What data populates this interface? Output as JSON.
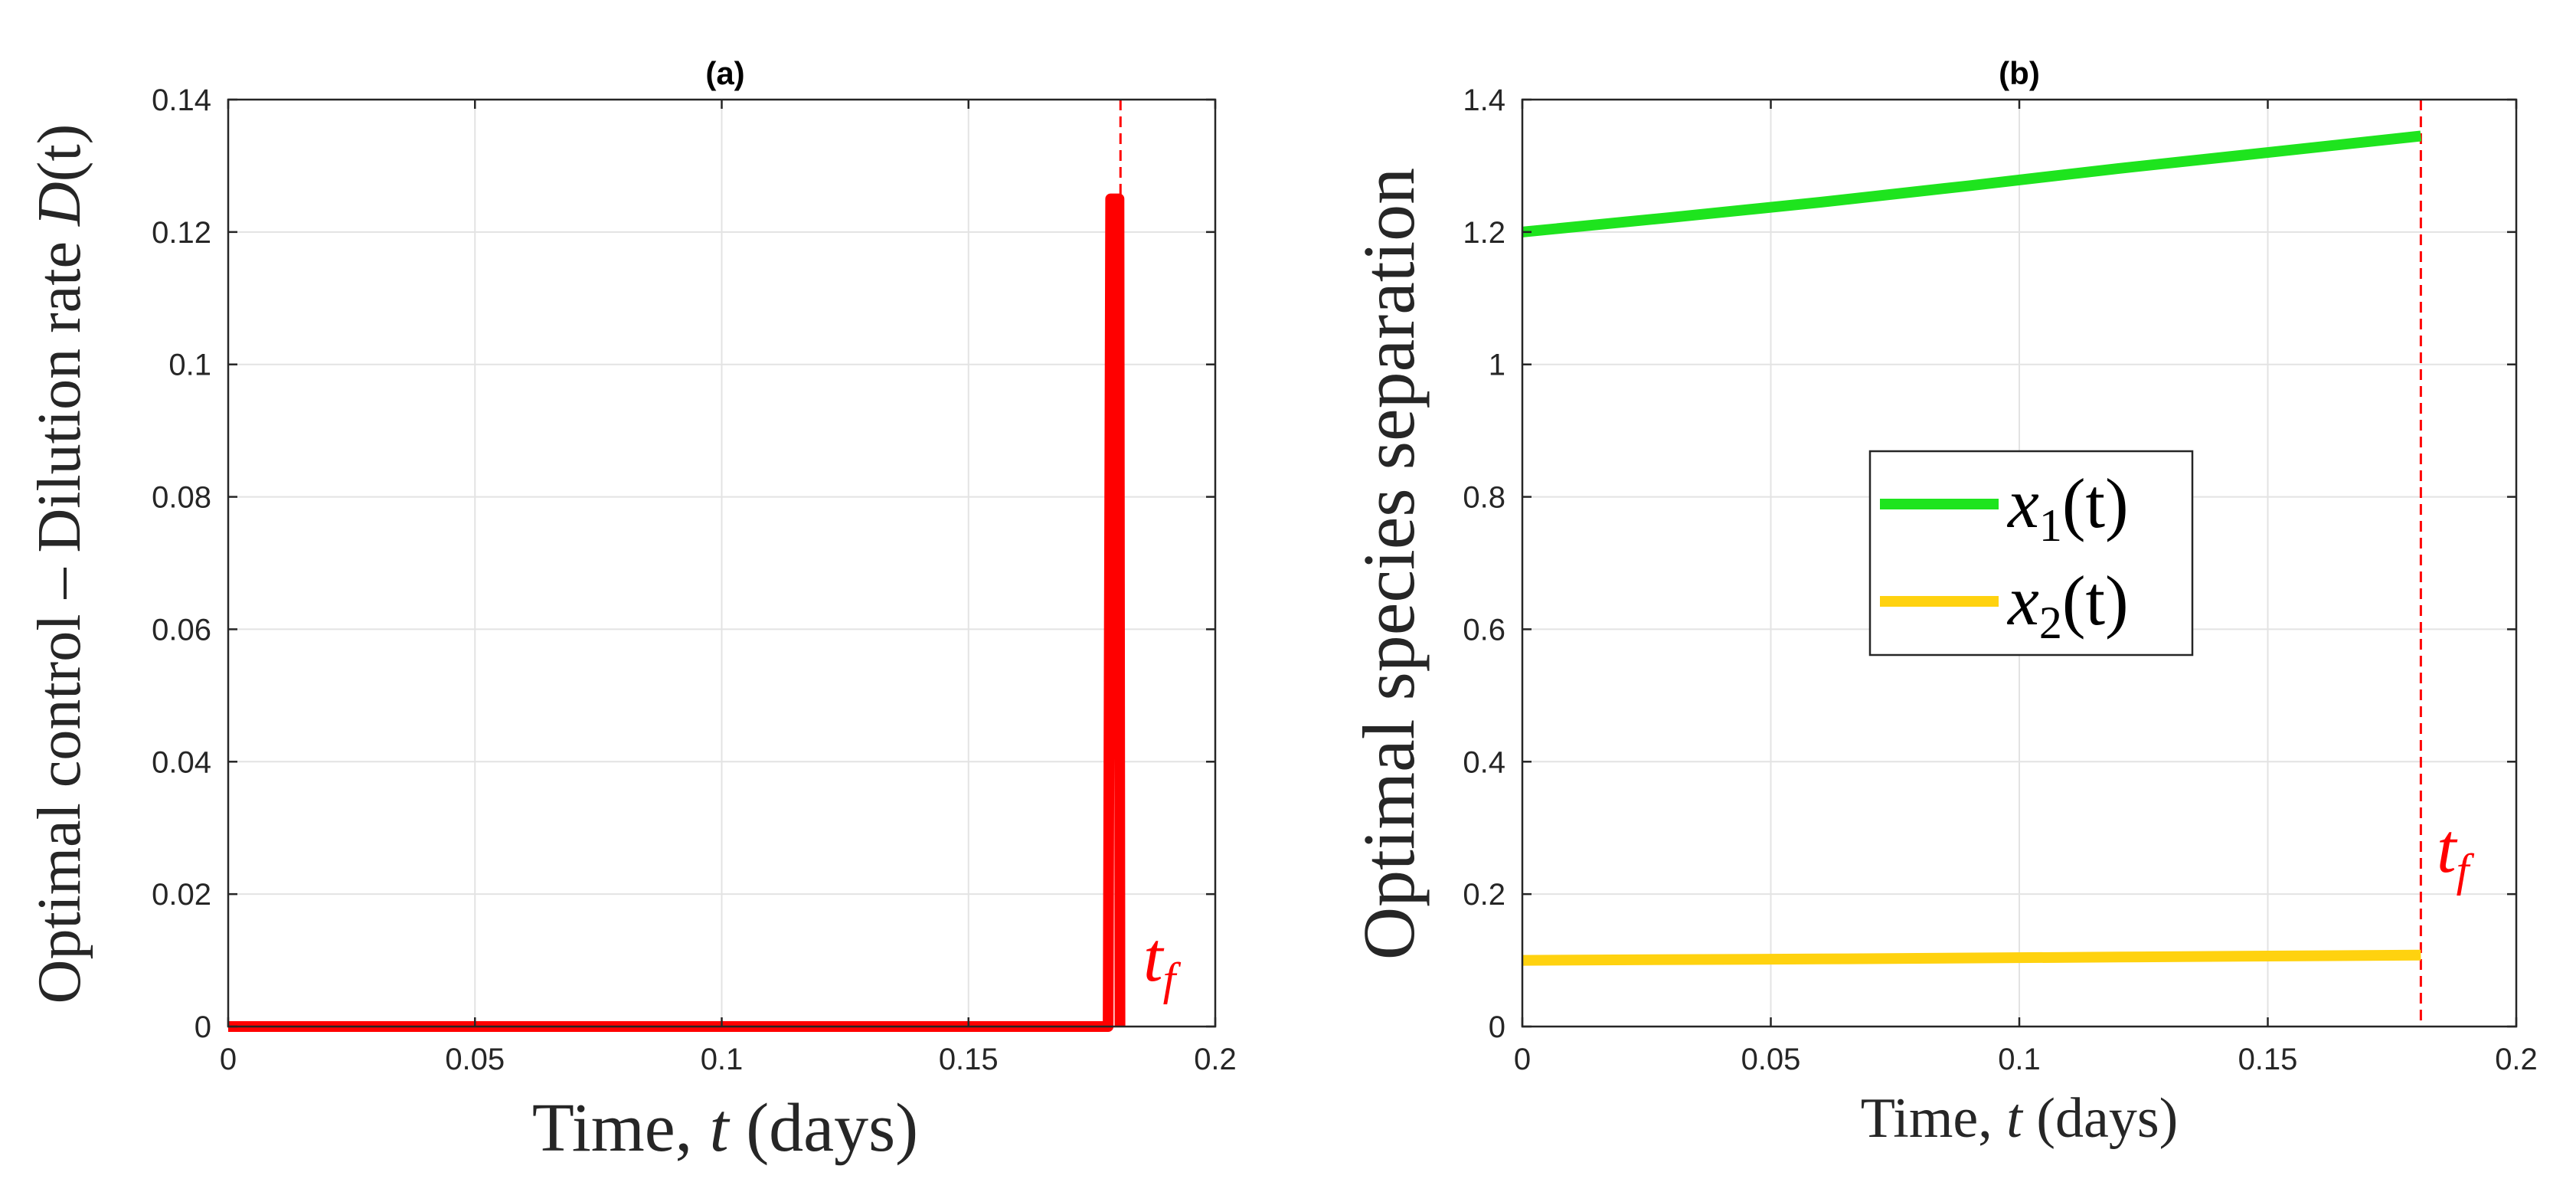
{
  "chart_data": [
    {
      "type": "line",
      "panel_title": "(a)",
      "xlabel_prefix": "Time, ",
      "xlabel_var": "t",
      "xlabel_suffix": " (days)",
      "ylabel_prefix": "Optimal control – Dilution rate ",
      "ylabel_var": "D",
      "ylabel_suffix": "(t)",
      "xlim": [
        0,
        0.2
      ],
      "ylim": [
        0,
        0.14
      ],
      "x_ticks": [
        0,
        0.05,
        0.1,
        0.15,
        0.2
      ],
      "x_tick_labels": [
        "0",
        "0.05",
        "0.1",
        "0.15",
        "0.2"
      ],
      "y_ticks": [
        0,
        0.02,
        0.04,
        0.06,
        0.08,
        0.1,
        0.12,
        0.14
      ],
      "y_tick_labels": [
        "0",
        "0.02",
        "0.04",
        "0.06",
        "0.08",
        "0.1",
        "0.12",
        "0.14"
      ],
      "grid": true,
      "series": [
        {
          "name": "D(t)",
          "color": "#ff0000",
          "x": [
            0,
            0.1765,
            0.1783,
            0.1788,
            0.18,
            0.1805,
            0.1807
          ],
          "y": [
            0,
            0,
            0,
            0.125,
            0.125,
            0.125,
            0
          ]
        }
      ],
      "tf": {
        "x": 0.1808,
        "label_main": "t",
        "label_sub": "f",
        "color": "#ff0000"
      }
    },
    {
      "type": "line",
      "panel_title": "(b)",
      "xlabel_prefix": "Time, ",
      "xlabel_var": "t",
      "xlabel_suffix": " (days)",
      "ylabel": "Optimal species separation",
      "xlim": [
        0,
        0.2
      ],
      "ylim": [
        0,
        1.4
      ],
      "x_ticks": [
        0,
        0.05,
        0.1,
        0.15,
        0.2
      ],
      "x_tick_labels": [
        "0",
        "0.05",
        "0.1",
        "0.15",
        "0.2"
      ],
      "y_ticks": [
        0,
        0.2,
        0.4,
        0.6,
        0.8,
        1.0,
        1.2,
        1.4
      ],
      "y_tick_labels": [
        "0",
        "0.2",
        "0.4",
        "0.6",
        "0.8",
        "1",
        "1.2",
        "1.4"
      ],
      "grid": true,
      "legend_position": "center",
      "series": [
        {
          "name": "x1(t)",
          "label_var": "x",
          "label_sub": "1",
          "label_suffix": "(t)",
          "color": "#1ee41e",
          "x": [
            0,
            0.03,
            0.06,
            0.09,
            0.12,
            0.15,
            0.1808
          ],
          "y": [
            1.2,
            1.222,
            1.245,
            1.27,
            1.296,
            1.32,
            1.345
          ]
        },
        {
          "name": "x2(t)",
          "label_var": "x",
          "label_sub": "2",
          "label_suffix": "(t)",
          "color": "#ffd20f",
          "x": [
            0,
            0.06,
            0.12,
            0.1808
          ],
          "y": [
            0.1,
            0.102,
            0.105,
            0.108
          ]
        }
      ],
      "tf": {
        "x": 0.1808,
        "label_main": "t",
        "label_sub": "f",
        "color": "#ff0000"
      }
    }
  ]
}
